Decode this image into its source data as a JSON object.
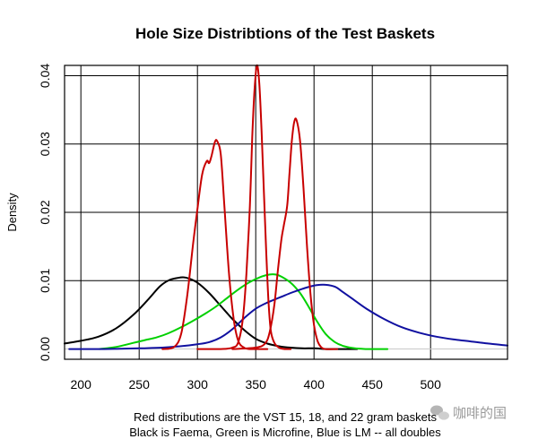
{
  "chart_data": {
    "type": "line",
    "title": "Hole Size Distribtions of the Test Baskets",
    "xlabel": "",
    "ylabel": "Density",
    "xlim": [
      186,
      566
    ],
    "ylim": [
      -0.0015,
      0.0415
    ],
    "x_ticks": [
      200,
      250,
      300,
      350,
      400,
      450,
      500
    ],
    "y_ticks": [
      0.0,
      0.01,
      0.02,
      0.03,
      0.04
    ],
    "y_tick_labels": [
      "0.00",
      "0.01",
      "0.02",
      "0.03",
      "0.04"
    ],
    "grid": true,
    "series": [
      {
        "color": "#000000",
        "x": [
          186,
          200,
          215,
          230,
          245,
          258,
          268,
          276,
          283,
          288,
          293,
          300,
          310,
          320,
          330,
          340,
          350,
          360,
          370,
          380,
          390,
          400,
          410,
          420,
          430,
          437
        ],
        "y": [
          0.0008,
          0.0012,
          0.0018,
          0.003,
          0.005,
          0.0073,
          0.0092,
          0.0101,
          0.0104,
          0.0105,
          0.0103,
          0.0097,
          0.0082,
          0.0063,
          0.0044,
          0.0028,
          0.0015,
          0.0008,
          0.0004,
          0.0002,
          0.0001,
          0.0001,
          0.0,
          0.0,
          0.0,
          0.0
        ]
      },
      {
        "color": "#00d000",
        "x": [
          216,
          230,
          245,
          255,
          265,
          275,
          285,
          295,
          305,
          315,
          325,
          335,
          345,
          355,
          362,
          367,
          372,
          380,
          388,
          395,
          402,
          410,
          418,
          426,
          435,
          445,
          455,
          463
        ],
        "y": [
          0.0,
          0.0003,
          0.0009,
          0.0013,
          0.0017,
          0.0023,
          0.0031,
          0.004,
          0.005,
          0.0061,
          0.0074,
          0.0087,
          0.0098,
          0.0106,
          0.0109,
          0.0109,
          0.0106,
          0.0097,
          0.0082,
          0.0063,
          0.0042,
          0.0022,
          0.001,
          0.0004,
          0.0001,
          0.0,
          0.0,
          0.0
        ]
      },
      {
        "color": "#1010a0",
        "x": [
          190,
          220,
          250,
          270,
          285,
          300,
          310,
          320,
          330,
          340,
          350,
          360,
          370,
          380,
          390,
          398,
          405,
          410,
          418,
          425,
          435,
          445,
          460,
          475,
          490,
          505,
          520,
          535,
          550,
          566
        ],
        "y": [
          0.0,
          0.0,
          0.0001,
          0.0002,
          0.0004,
          0.0007,
          0.001,
          0.0017,
          0.0029,
          0.0045,
          0.0059,
          0.0068,
          0.0075,
          0.0082,
          0.0088,
          0.0092,
          0.0094,
          0.0094,
          0.0091,
          0.0083,
          0.0071,
          0.0059,
          0.0044,
          0.0032,
          0.0024,
          0.0018,
          0.0014,
          0.0011,
          0.0008,
          0.0005
        ]
      },
      {
        "color": "#c80000",
        "x": [
          270,
          280,
          286,
          291,
          296,
          300,
          304,
          308,
          310,
          312,
          315,
          317,
          320,
          323,
          327,
          331,
          335,
          340,
          345,
          350,
          355,
          360
        ],
        "y": [
          0.0,
          0.0003,
          0.0022,
          0.0075,
          0.015,
          0.0205,
          0.0255,
          0.0275,
          0.0272,
          0.0282,
          0.0303,
          0.0304,
          0.0285,
          0.0212,
          0.0112,
          0.0045,
          0.0012,
          0.0002,
          0.0,
          0.0,
          0.0,
          0.0
        ]
      },
      {
        "color": "#c80000",
        "x": [
          300,
          320,
          330,
          335,
          339,
          342,
          345,
          347,
          349,
          351,
          353,
          355,
          357,
          359,
          361,
          363,
          366,
          370,
          375,
          380
        ],
        "y": [
          0.0,
          0.0,
          0.0002,
          0.001,
          0.0045,
          0.011,
          0.021,
          0.031,
          0.038,
          0.0415,
          0.039,
          0.032,
          0.023,
          0.0142,
          0.0068,
          0.0026,
          0.0009,
          0.0002,
          0.0,
          0.0
        ]
      },
      {
        "color": "#c80000",
        "x": [
          330,
          350,
          358,
          362,
          366,
          369,
          372,
          374,
          377,
          379,
          381,
          383,
          385,
          388,
          391,
          394,
          397,
          400,
          403,
          406,
          410,
          420
        ],
        "y": [
          0.0,
          0.0002,
          0.0008,
          0.0025,
          0.0065,
          0.0115,
          0.016,
          0.018,
          0.021,
          0.0258,
          0.0305,
          0.0332,
          0.0335,
          0.0305,
          0.0235,
          0.015,
          0.008,
          0.0035,
          0.0012,
          0.0003,
          0.0,
          0.0
        ]
      }
    ]
  },
  "caption": {
    "line1": "Red distributions are the VST 15, 18, and 22 gram baskets",
    "line2": "Black is Faema, Green is Microfine, Blue is LM -- all doubles"
  },
  "watermark": {
    "text": "咖啡的国",
    "icon": "wechat-bubble-icon"
  }
}
